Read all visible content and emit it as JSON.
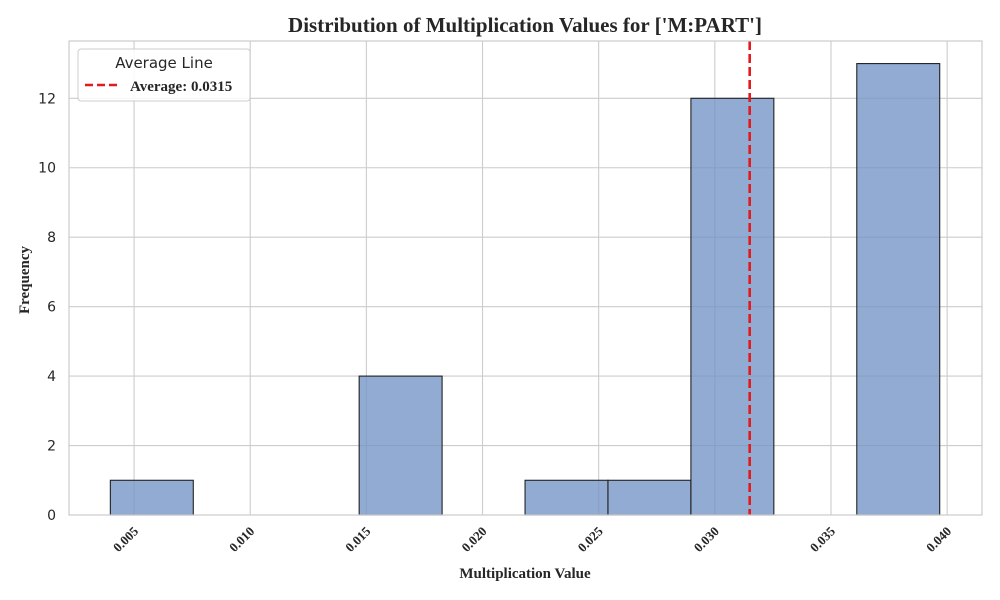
{
  "chart_data": {
    "type": "histogram",
    "title": "Distribution of Multiplication Values for ['M:PART']",
    "xlabel": "Multiplication Value",
    "ylabel": "Frequency",
    "xlim": [
      0.0022,
      0.0415
    ],
    "ylim": [
      0,
      13.65
    ],
    "xticks": [
      "0.005",
      "0.010",
      "0.015",
      "0.020",
      "0.025",
      "0.030",
      "0.035",
      "0.040"
    ],
    "yticks": [
      "0",
      "2",
      "4",
      "6",
      "8",
      "10",
      "12"
    ],
    "bins": [
      {
        "x0": 0.00398,
        "x1": 0.00755,
        "count": 1
      },
      {
        "x0": 0.00755,
        "x1": 0.01112,
        "count": 0
      },
      {
        "x0": 0.01112,
        "x1": 0.01469,
        "count": 0
      },
      {
        "x0": 0.01469,
        "x1": 0.01826,
        "count": 4
      },
      {
        "x0": 0.01826,
        "x1": 0.02183,
        "count": 0
      },
      {
        "x0": 0.02183,
        "x1": 0.0254,
        "count": 1
      },
      {
        "x0": 0.0254,
        "x1": 0.02897,
        "count": 1
      },
      {
        "x0": 0.02897,
        "x1": 0.03254,
        "count": 12
      },
      {
        "x0": 0.03254,
        "x1": 0.03611,
        "count": 0
      },
      {
        "x0": 0.03611,
        "x1": 0.03968,
        "count": 13
      }
    ],
    "average": 0.0315,
    "legend": {
      "title": "Average Line",
      "entry": "Average: 0.0315",
      "placement": "top-left"
    },
    "grid": true,
    "colors": {
      "bar_fill": "#7394c5",
      "bar_edge": "#222222",
      "average_line": "#e31a1c",
      "grid": "#cccccc",
      "spine": "#cccccc"
    }
  }
}
